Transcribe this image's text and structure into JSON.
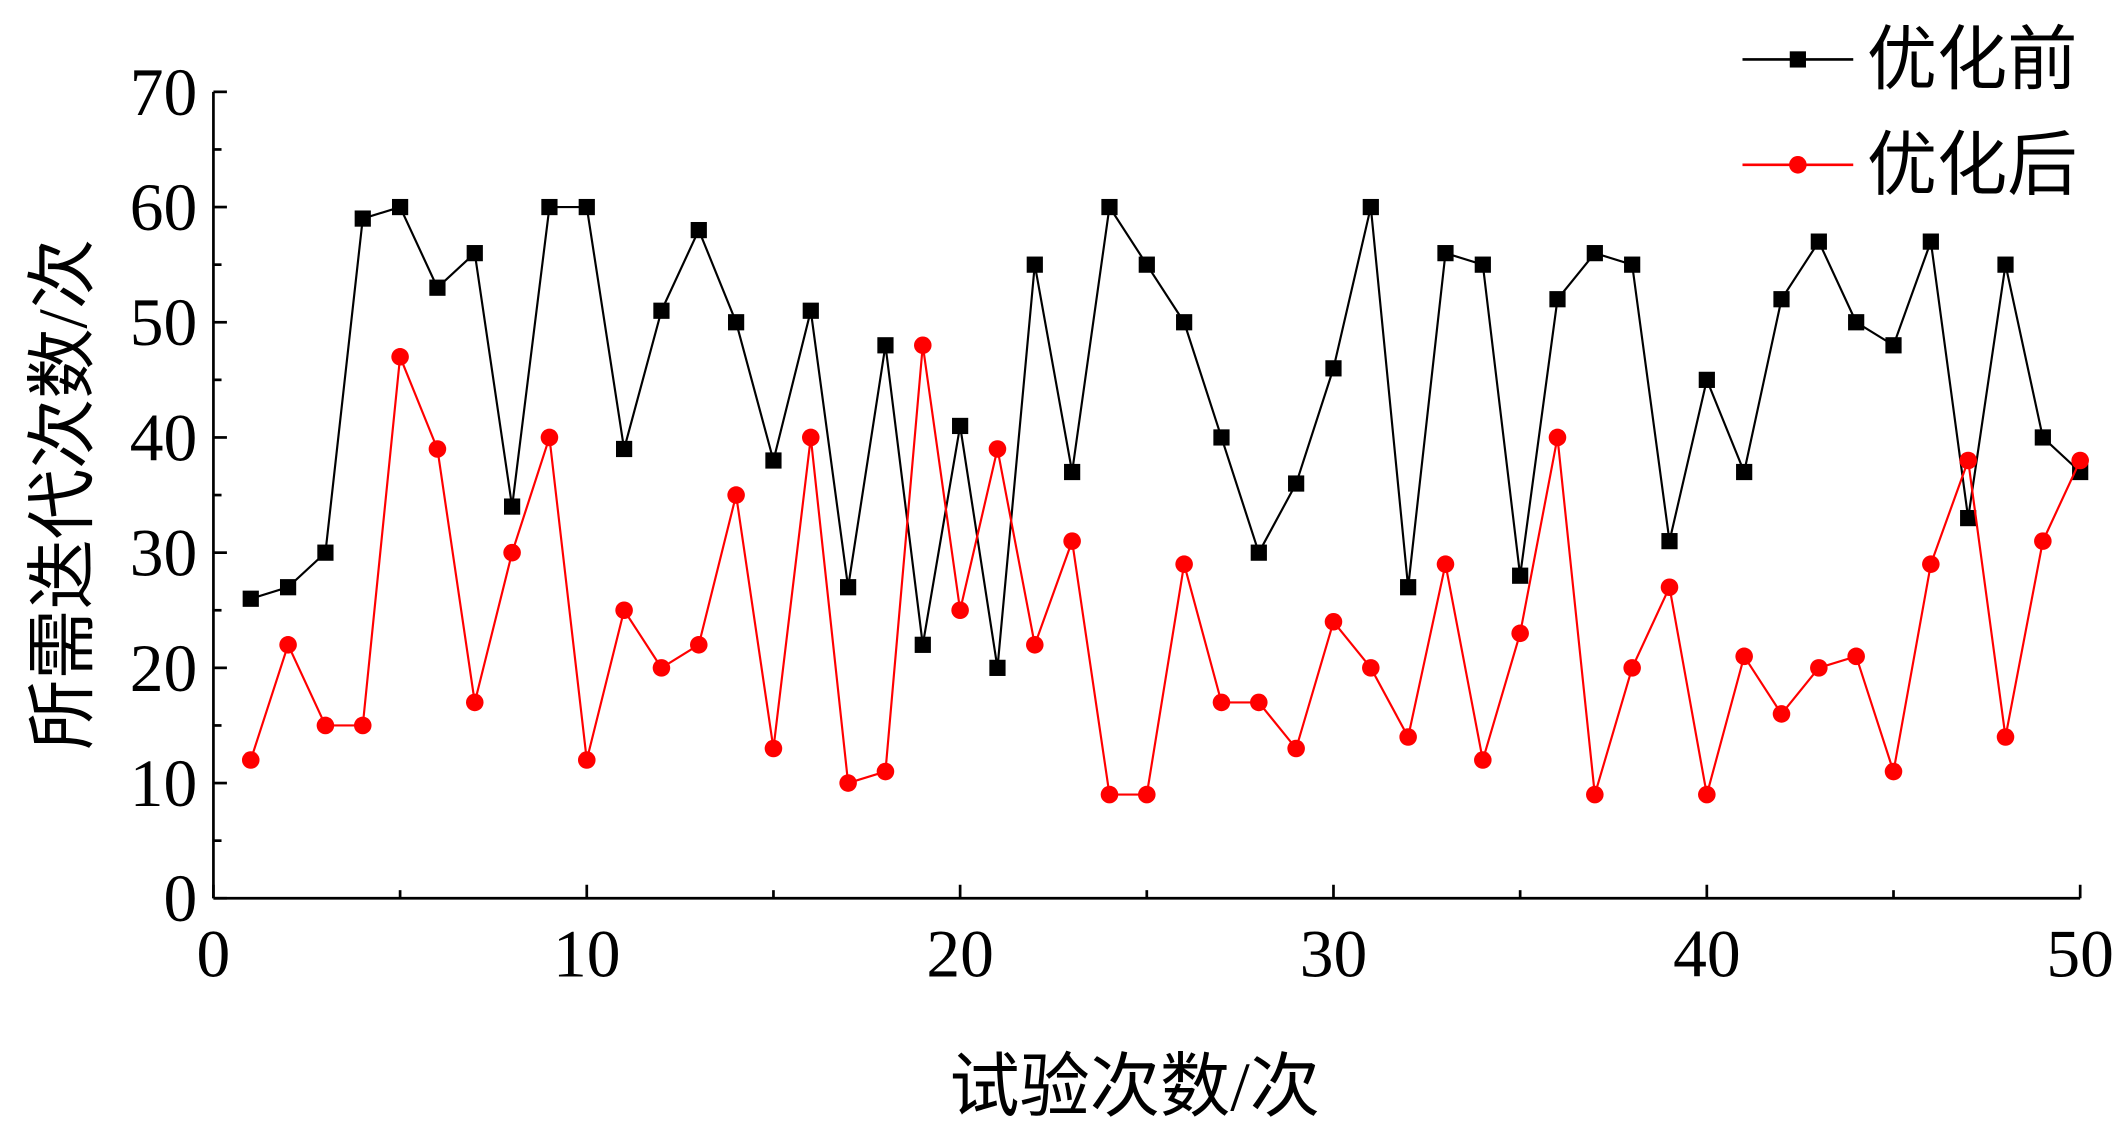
{
  "chart_data": {
    "type": "line",
    "xlabel": "试验次数/次",
    "ylabel": "所需迭代次数/次",
    "xlim": [
      0,
      50
    ],
    "ylim": [
      0,
      70
    ],
    "xticks": [
      0,
      10,
      20,
      30,
      40,
      50
    ],
    "yticks": [
      0,
      10,
      20,
      30,
      40,
      50,
      60,
      70
    ],
    "grid": false,
    "legend_position": "top-right",
    "x": [
      1,
      2,
      3,
      4,
      5,
      6,
      7,
      8,
      9,
      10,
      11,
      12,
      13,
      14,
      15,
      16,
      17,
      18,
      19,
      20,
      21,
      22,
      23,
      24,
      25,
      26,
      27,
      28,
      29,
      30,
      31,
      32,
      33,
      34,
      35,
      36,
      37,
      38,
      39,
      40,
      41,
      42,
      43,
      44,
      45,
      46,
      47,
      48,
      49,
      50
    ],
    "series": [
      {
        "name": "优化前",
        "color": "#000000",
        "marker": "square",
        "values": [
          26,
          27,
          30,
          59,
          60,
          53,
          56,
          34,
          60,
          60,
          39,
          51,
          58,
          50,
          38,
          51,
          27,
          48,
          22,
          41,
          20,
          55,
          37,
          60,
          55,
          50,
          40,
          30,
          36,
          46,
          60,
          27,
          56,
          55,
          28,
          52,
          56,
          55,
          31,
          45,
          37,
          52,
          57,
          50,
          48,
          57,
          33,
          55,
          40,
          37
        ]
      },
      {
        "name": "优化后",
        "color": "#ff0000",
        "marker": "circle",
        "values": [
          12,
          22,
          15,
          15,
          47,
          39,
          17,
          30,
          40,
          12,
          25,
          20,
          22,
          35,
          13,
          40,
          10,
          11,
          48,
          25,
          39,
          22,
          31,
          9,
          9,
          29,
          17,
          17,
          13,
          24,
          20,
          14,
          29,
          12,
          23,
          40,
          9,
          20,
          27,
          9,
          21,
          16,
          20,
          21,
          11,
          29,
          38,
          14,
          31,
          38
        ]
      }
    ]
  }
}
